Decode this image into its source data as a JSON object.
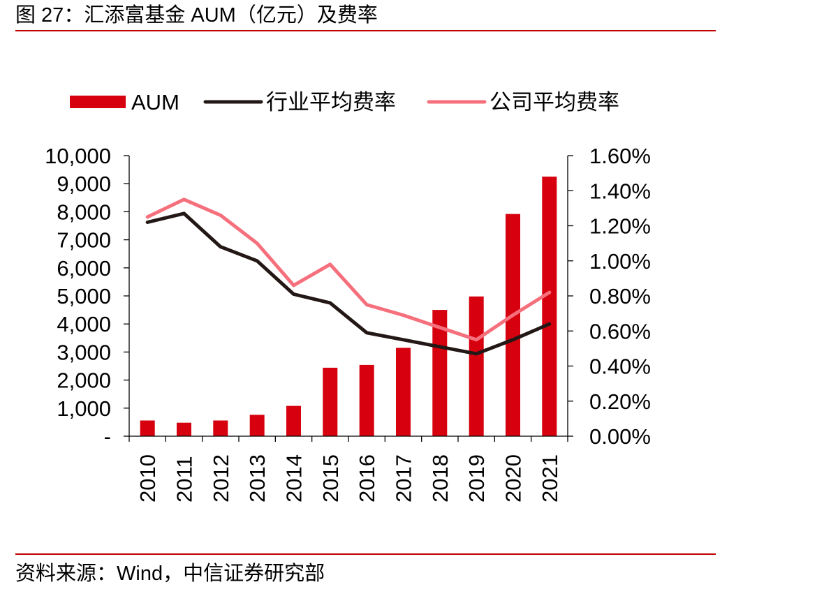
{
  "figure": {
    "title": "图 27：汇添富基金 AUM（亿元）及费率",
    "source": "资料来源：Wind，中信证券研究部"
  },
  "colors": {
    "rule": "#c00000",
    "bar": "#d6000e",
    "industry_line": "#231815",
    "company_line": "#f5707c",
    "axis": "#000000"
  },
  "chart_data": {
    "type": "bar",
    "categories": [
      "2010",
      "2011",
      "2012",
      "2013",
      "2014",
      "2015",
      "2016",
      "2017",
      "2018",
      "2019",
      "2020",
      "2021"
    ],
    "series": [
      {
        "name": "AUM",
        "type": "bar",
        "axis": "left",
        "values": [
          560,
          480,
          560,
          760,
          1080,
          2440,
          2540,
          3150,
          4500,
          4980,
          7920,
          9250
        ]
      },
      {
        "name": "行业平均费率",
        "type": "line",
        "axis": "right",
        "values": [
          1.22,
          1.27,
          1.08,
          1.0,
          0.81,
          0.76,
          0.59,
          0.55,
          0.51,
          0.47,
          0.55,
          0.64
        ]
      },
      {
        "name": "公司平均费率",
        "type": "line",
        "axis": "right",
        "values": [
          1.25,
          1.35,
          1.26,
          1.1,
          0.86,
          0.98,
          0.75,
          0.69,
          0.62,
          0.55,
          0.69,
          0.82
        ]
      }
    ],
    "y_left": {
      "ylim": [
        0,
        10000
      ],
      "ticks": [
        0,
        1000,
        2000,
        3000,
        4000,
        5000,
        6000,
        7000,
        8000,
        9000,
        10000
      ],
      "tick_labels": [
        "-",
        "1,000",
        "2,000",
        "3,000",
        "4,000",
        "5,000",
        "6,000",
        "7,000",
        "8,000",
        "9,000",
        "10,000"
      ]
    },
    "y_right": {
      "ylim": [
        0,
        1.6
      ],
      "ticks": [
        0,
        0.2,
        0.4,
        0.6,
        0.8,
        1.0,
        1.2,
        1.4,
        1.6
      ],
      "tick_labels": [
        "0.00%",
        "0.20%",
        "0.40%",
        "0.60%",
        "0.80%",
        "1.00%",
        "1.20%",
        "1.40%",
        "1.60%"
      ]
    },
    "legend": {
      "position": "top",
      "entries": [
        "AUM",
        "行业平均费率",
        "公司平均费率"
      ]
    },
    "grid": false
  }
}
